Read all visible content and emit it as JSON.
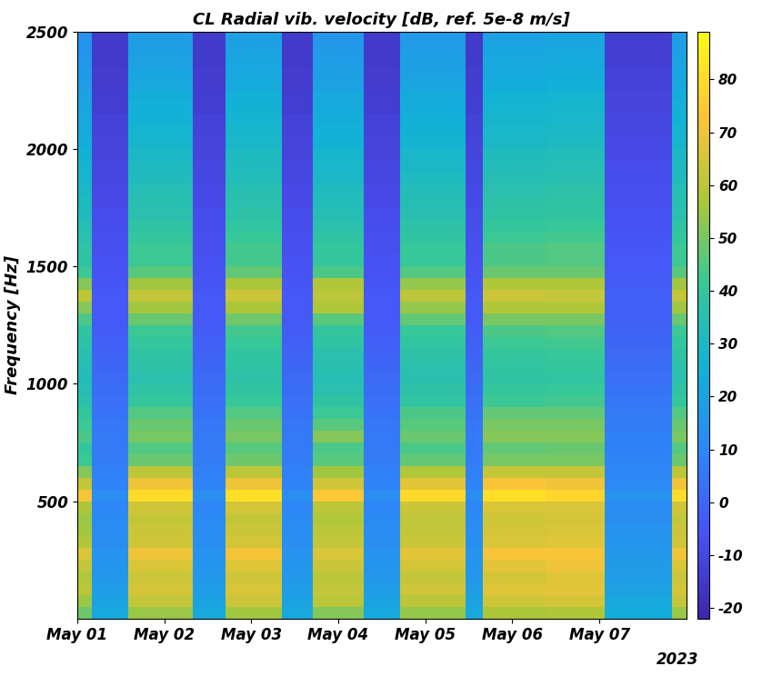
{
  "chart_data": {
    "type": "heatmap",
    "title": "CL Radial vib. velocity [dB, ref. 5e-8 m/s]",
    "y_label": "Frequency [Hz]",
    "annotation": "2023",
    "xlim": [
      "2023-05-01 00:00",
      "2023-05-08 00:00"
    ],
    "xticks": [
      {
        "value": "2023-05-01 00:00",
        "label": "May 01"
      },
      {
        "value": "2023-05-02 00:00",
        "label": "May 02"
      },
      {
        "value": "2023-05-03 00:00",
        "label": "May 03"
      },
      {
        "value": "2023-05-04 00:00",
        "label": "May 04"
      },
      {
        "value": "2023-05-05 00:00",
        "label": "May 05"
      },
      {
        "value": "2023-05-06 00:00",
        "label": "May 06"
      },
      {
        "value": "2023-05-07 00:00",
        "label": "May 07"
      }
    ],
    "ylim": [
      0,
      2500
    ],
    "yticks": [
      500,
      1000,
      1500,
      2000,
      2500
    ],
    "grid": false,
    "time_edges": [
      "2023-05-01 00:00",
      "2023-05-01 04:00",
      "2023-05-01 14:00",
      "2023-05-02 08:00",
      "2023-05-02 17:00",
      "2023-05-03 08:30",
      "2023-05-03 17:00",
      "2023-05-04 07:00",
      "2023-05-04 17:00",
      "2023-05-05 11:00",
      "2023-05-05 16:00",
      "2023-05-06 09:30",
      "2023-05-07 01:30",
      "2023-05-07 20:00",
      "2023-05-08 00:00"
    ],
    "freq_edges": [
      0,
      50,
      100,
      150,
      200,
      250,
      300,
      350,
      400,
      450,
      500,
      550,
      600,
      650,
      700,
      750,
      800,
      850,
      900,
      950,
      1000,
      1050,
      1100,
      1150,
      1200,
      1250,
      1300,
      1350,
      1400,
      1450,
      1500,
      1550,
      1600,
      1650,
      1700,
      1750,
      1800,
      1850,
      1900,
      1950,
      2000,
      2050,
      2100,
      2150,
      2200,
      2250,
      2300,
      2350,
      2400,
      2450,
      2500
    ],
    "cells": [
      [
        49,
        55,
        60,
        58,
        62,
        66,
        58,
        56,
        55,
        57,
        72,
        62,
        52,
        42,
        40,
        44,
        42,
        40,
        36,
        34,
        33,
        34,
        35,
        37,
        39,
        44,
        52,
        60,
        52,
        42,
        38,
        38,
        36,
        34,
        32,
        31,
        30,
        28,
        27,
        26,
        24,
        23,
        22,
        21,
        20,
        18,
        17,
        16,
        15,
        14
      ],
      [
        22,
        20,
        18,
        16,
        15,
        14,
        13,
        12,
        11,
        10,
        12,
        9,
        8,
        7,
        6,
        6,
        5,
        4,
        3,
        2,
        1,
        0,
        -1,
        -2,
        -3,
        -4,
        -4,
        -4,
        -5,
        -6,
        -6,
        -7,
        -7,
        -8,
        -8,
        -9,
        -9,
        -10,
        -10,
        -11,
        -11,
        -12,
        -12,
        -13,
        -13,
        -14,
        -14,
        -15,
        -15,
        -15
      ],
      [
        55,
        62,
        65,
        63,
        66,
        70,
        64,
        63,
        62,
        64,
        80,
        70,
        60,
        48,
        45,
        50,
        48,
        45,
        40,
        38,
        36,
        37,
        38,
        40,
        42,
        48,
        56,
        62,
        56,
        46,
        42,
        42,
        40,
        38,
        36,
        35,
        34,
        32,
        31,
        30,
        28,
        27,
        26,
        25,
        24,
        22,
        21,
        20,
        19,
        18
      ],
      [
        22,
        20,
        18,
        16,
        15,
        14,
        13,
        12,
        11,
        10,
        12,
        9,
        8,
        7,
        6,
        6,
        5,
        4,
        3,
        2,
        1,
        0,
        -1,
        -2,
        -3,
        -4,
        -4,
        -4,
        -5,
        -6,
        -6,
        -7,
        -7,
        -8,
        -8,
        -9,
        -9,
        -10,
        -10,
        -11,
        -11,
        -12,
        -12,
        -13,
        -13,
        -14,
        -14,
        -15,
        -15,
        -15
      ],
      [
        56,
        63,
        66,
        64,
        67,
        71,
        65,
        63,
        62,
        65,
        81,
        70,
        60,
        49,
        46,
        50,
        48,
        45,
        41,
        39,
        37,
        38,
        39,
        41,
        43,
        49,
        57,
        63,
        57,
        47,
        43,
        43,
        41,
        39,
        37,
        36,
        35,
        33,
        32,
        31,
        29,
        28,
        27,
        26,
        25,
        23,
        22,
        21,
        20,
        19
      ],
      [
        22,
        20,
        18,
        16,
        15,
        14,
        13,
        12,
        11,
        10,
        12,
        9,
        8,
        7,
        6,
        6,
        5,
        4,
        3,
        2,
        1,
        0,
        -1,
        -2,
        -3,
        -4,
        -4,
        -4,
        -5,
        -6,
        -6,
        -7,
        -7,
        -8,
        -8,
        -9,
        -9,
        -10,
        -10,
        -11,
        -11,
        -12,
        -12,
        -13,
        -13,
        -14,
        -14,
        -15,
        -15,
        -15
      ],
      [
        52,
        60,
        62,
        60,
        63,
        66,
        62,
        60,
        58,
        60,
        74,
        64,
        56,
        46,
        44,
        52,
        46,
        42,
        38,
        36,
        34,
        35,
        36,
        38,
        40,
        46,
        58,
        60,
        58,
        44,
        40,
        40,
        38,
        36,
        34,
        33,
        32,
        30,
        29,
        28,
        26,
        25,
        24,
        23,
        22,
        20,
        19,
        18,
        17,
        16
      ],
      [
        22,
        20,
        18,
        16,
        15,
        14,
        13,
        12,
        11,
        10,
        12,
        9,
        8,
        7,
        6,
        6,
        5,
        4,
        3,
        2,
        1,
        0,
        -1,
        -2,
        -3,
        -4,
        -4,
        -4,
        -5,
        -6,
        -6,
        -7,
        -7,
        -8,
        -8,
        -9,
        -9,
        -10,
        -10,
        -11,
        -11,
        -12,
        -12,
        -13,
        -13,
        -14,
        -14,
        -15,
        -15,
        -15
      ],
      [
        54,
        60,
        64,
        62,
        65,
        68,
        63,
        62,
        61,
        63,
        79,
        68,
        58,
        47,
        44,
        48,
        46,
        44,
        39,
        37,
        35,
        36,
        37,
        39,
        41,
        47,
        54,
        60,
        54,
        45,
        41,
        41,
        39,
        37,
        35,
        34,
        33,
        31,
        30,
        29,
        27,
        26,
        25,
        24,
        23,
        21,
        20,
        19,
        18,
        17
      ],
      [
        22,
        20,
        18,
        16,
        15,
        14,
        13,
        12,
        11,
        10,
        12,
        9,
        8,
        7,
        6,
        6,
        5,
        4,
        3,
        2,
        1,
        0,
        -1,
        -2,
        -3,
        -4,
        -4,
        -4,
        -5,
        -6,
        -6,
        -7,
        -7,
        -8,
        -8,
        -9,
        -9,
        -10,
        -10,
        -11,
        -11,
        -12,
        -12,
        -13,
        -13,
        -14,
        -14,
        -15,
        -15,
        -15
      ],
      [
        57,
        64,
        67,
        65,
        68,
        72,
        66,
        65,
        64,
        66,
        81,
        72,
        62,
        50,
        47,
        52,
        50,
        47,
        42,
        40,
        38,
        39,
        40,
        42,
        44,
        50,
        58,
        63,
        58,
        48,
        44,
        44,
        42,
        40,
        38,
        37,
        36,
        34,
        33,
        32,
        30,
        29,
        28,
        27,
        26,
        24,
        23,
        22,
        21,
        20
      ],
      [
        58,
        65,
        68,
        67,
        70,
        72,
        67,
        66,
        65,
        66,
        78,
        70,
        62,
        50,
        48,
        52,
        50,
        47,
        43,
        41,
        39,
        40,
        41,
        43,
        45,
        50,
        58,
        62,
        58,
        48,
        45,
        45,
        43,
        41,
        39,
        38,
        37,
        35,
        34,
        33,
        31,
        30,
        29,
        28,
        27,
        25,
        24,
        23,
        22,
        21
      ],
      [
        24,
        22,
        20,
        18,
        17,
        16,
        15,
        14,
        13,
        12,
        14,
        11,
        10,
        9,
        8,
        8,
        7,
        6,
        5,
        4,
        3,
        2,
        1,
        0,
        -1,
        -2,
        -2,
        -2,
        -3,
        -4,
        -4,
        -5,
        -5,
        -6,
        -6,
        -7,
        -7,
        -8,
        -8,
        -9,
        -9,
        -10,
        -10,
        -11,
        -11,
        -12,
        -12,
        -13,
        -13,
        -13
      ],
      [
        55,
        62,
        65,
        63,
        66,
        70,
        64,
        63,
        62,
        64,
        80,
        70,
        60,
        48,
        45,
        50,
        48,
        45,
        40,
        38,
        36,
        37,
        38,
        40,
        42,
        48,
        56,
        62,
        56,
        46,
        42,
        42,
        40,
        38,
        36,
        35,
        34,
        32,
        31,
        30,
        28,
        27,
        26,
        25,
        24,
        22,
        21,
        20,
        19,
        18
      ]
    ],
    "color_range": [
      -22,
      89
    ],
    "color_ticks": [
      -20,
      -10,
      0,
      10,
      20,
      30,
      40,
      50,
      60,
      70,
      80
    ]
  }
}
